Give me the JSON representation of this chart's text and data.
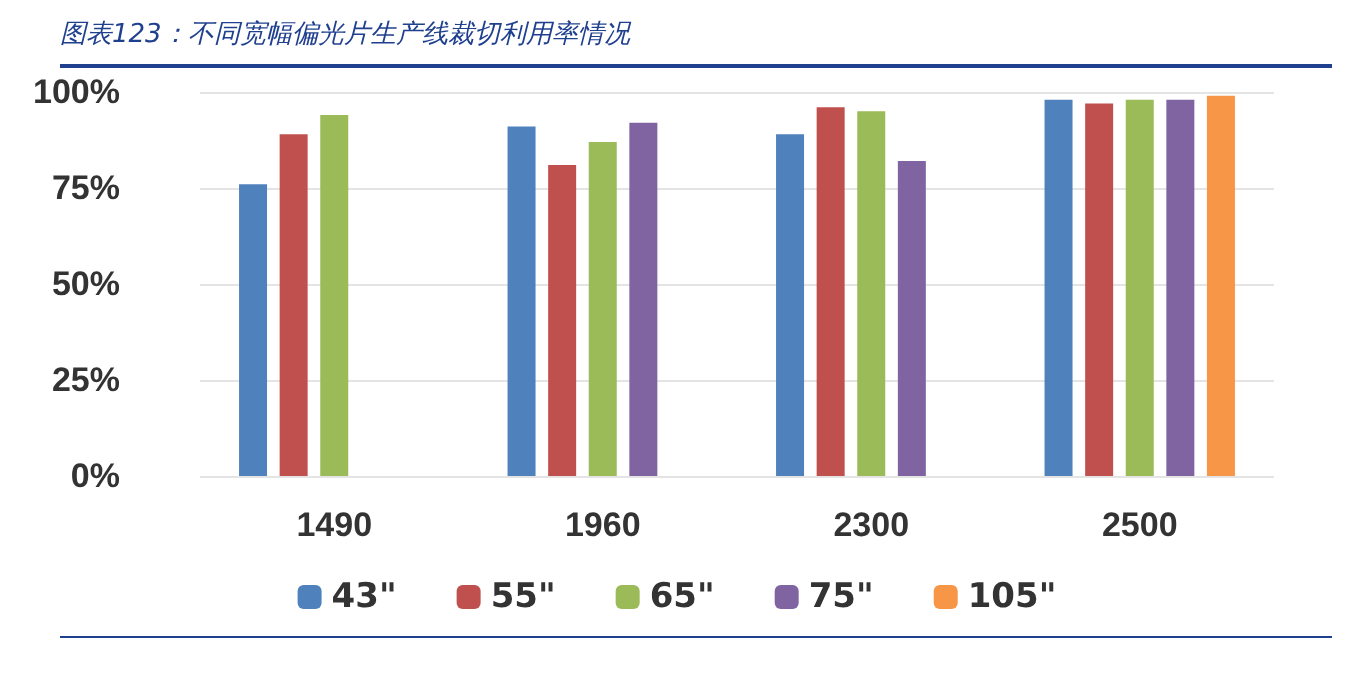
{
  "chart_data": {
    "type": "bar",
    "title": "图表123：不同宽幅偏光片生产线裁切利用率情况",
    "categories": [
      "1490",
      "1960",
      "2300",
      "2500"
    ],
    "series": [
      {
        "name": "43\"",
        "color": "#4f81bd",
        "values": [
          76,
          91,
          89,
          98
        ]
      },
      {
        "name": "55\"",
        "color": "#c0504d",
        "values": [
          89,
          81,
          96,
          97
        ]
      },
      {
        "name": "65\"",
        "color": "#9bbb59",
        "values": [
          94,
          87,
          95,
          98
        ]
      },
      {
        "name": "75\"",
        "color": "#8064a2",
        "values": [
          null,
          92,
          82,
          98
        ]
      },
      {
        "name": "105\"",
        "color": "#f79646",
        "values": [
          null,
          null,
          null,
          99
        ]
      }
    ],
    "ylim": [
      0,
      100
    ],
    "yticks": [
      {
        "value": 0,
        "label": "0%"
      },
      {
        "value": 25,
        "label": "25%"
      },
      {
        "value": 50,
        "label": "50%"
      },
      {
        "value": 75,
        "label": "75%"
      },
      {
        "value": 100,
        "label": "100%"
      }
    ],
    "grid": "y",
    "legend": "bottom"
  }
}
